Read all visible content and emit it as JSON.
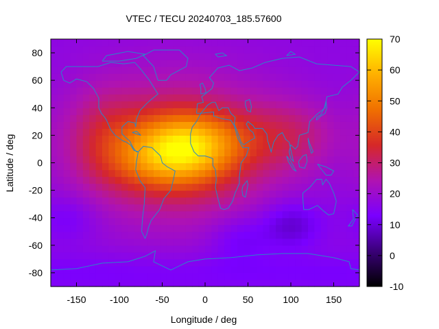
{
  "chart_data": {
    "type": "heatmap",
    "title": "VTEC / TECU 20240703_185.57600",
    "xlabel": "Longitude / deg",
    "ylabel": "Latitude / deg",
    "xlim": [
      -180,
      180
    ],
    "ylim": [
      -90,
      90
    ],
    "x_ticks": [
      -150,
      -100,
      -50,
      0,
      50,
      100,
      150
    ],
    "y_ticks": [
      -80,
      -60,
      -40,
      -20,
      0,
      20,
      40,
      60,
      80
    ],
    "colorbar": {
      "range": [
        -10,
        70
      ],
      "ticks": [
        -10,
        0,
        10,
        20,
        30,
        40,
        50,
        60,
        70
      ],
      "palette": [
        "#000000",
        "#3a0078",
        "#7a00ff",
        "#b013b0",
        "#d62828",
        "#f07000",
        "#ffb000",
        "#ffff00"
      ]
    },
    "grid": false,
    "coastline_color": "#2a86c8",
    "field": {
      "background": 17,
      "enhancement_peak_lat": 6,
      "enhancement_peak_lon": -30,
      "crest_north": {
        "lat": 17,
        "lon": -20,
        "amplitude": 52
      },
      "crest_south": {
        "lat": 0,
        "lon": -40,
        "amplitude": 48
      },
      "trough_centers": [
        {
          "lat": -45,
          "lon": 100,
          "amplitude": -9
        },
        {
          "lat": -55,
          "lon": 40,
          "amplitude": -6
        },
        {
          "lat": -40,
          "lon": -160,
          "amplitude": -5
        }
      ]
    }
  }
}
